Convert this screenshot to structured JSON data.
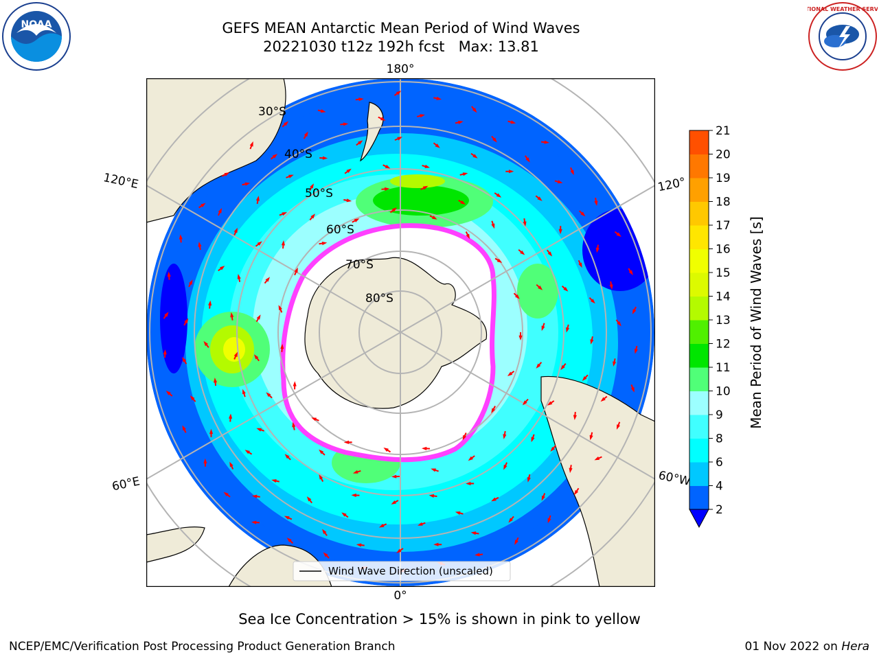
{
  "header": {
    "title_line1": "GEFS MEAN Antarctic Mean Period of Wind Waves",
    "title_line2": "20221030 t12z 192h fcst   Max: 13.81"
  },
  "logos": {
    "left": {
      "icon": "noaa-logo",
      "text": "NOAA"
    },
    "right": {
      "icon": "nws-logo",
      "text": "NATIONAL WEATHER SERVICE"
    }
  },
  "map": {
    "projection": "south-polar-stereographic",
    "longitude_labels": {
      "top": "180°",
      "bottom": "0°",
      "left_upper": "120°E",
      "left_lower": "60°E",
      "right_upper": "120°",
      "right_lower": "60°W"
    },
    "latitude_labels": [
      "30°S",
      "40°S",
      "50°S",
      "60°S",
      "70°S",
      "80°S"
    ],
    "legend_text": "Wind Wave Direction (unscaled)",
    "colors": {
      "land": "#efebd8",
      "ice_free_interior": "#ffffff",
      "sea_ice_edge": "#ff40ff",
      "arrow": "#ff0000",
      "grid": "#b4b4b4"
    }
  },
  "colorbar": {
    "label": "Mean Period of Wind Waves [s]",
    "ticks": [
      "2",
      "4",
      "6",
      "8",
      "9",
      "10",
      "11",
      "12",
      "13",
      "14",
      "15",
      "16",
      "17",
      "18",
      "19",
      "20",
      "21"
    ],
    "colors": [
      "#0064ff",
      "#00c8ff",
      "#00ffff",
      "#40ffff",
      "#9cffff",
      "#50ff78",
      "#00e600",
      "#50f000",
      "#b4fa00",
      "#dcfa00",
      "#f0ff00",
      "#ffe600",
      "#ffc800",
      "#ffa000",
      "#ff7800",
      "#ff5000",
      "#ff2800",
      "#ff0000"
    ],
    "under_color": "#0000ff"
  },
  "footer": {
    "note": "Sea Ice Concentration > 15% is shown in pink to yellow",
    "left": "NCEP/EMC/Verification Post Processing Product Generation Branch",
    "right_date": "01 Nov 2022 on ",
    "right_machine": "Hera"
  }
}
